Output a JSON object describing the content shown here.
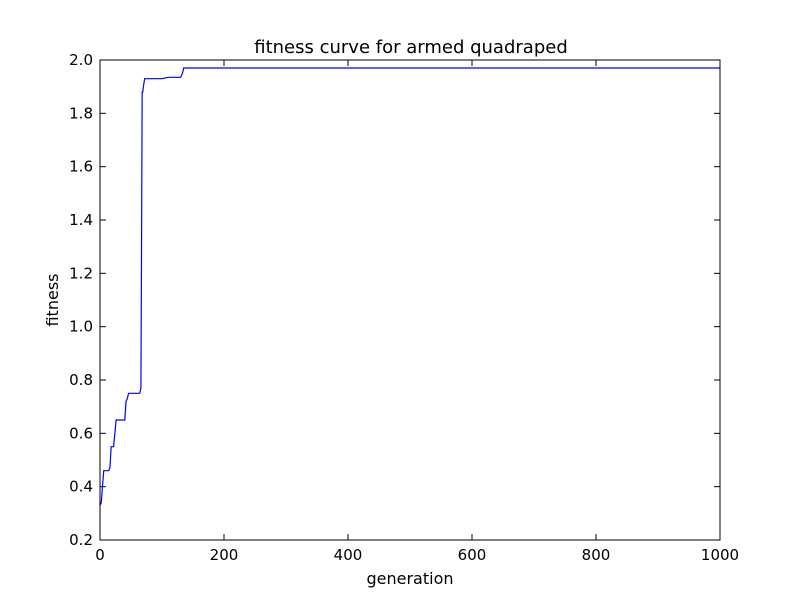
{
  "chart_data": {
    "type": "line",
    "title": "fitness curve for armed quadraped",
    "xlabel": "generation",
    "ylabel": "fitness",
    "xlim": [
      0,
      1000
    ],
    "ylim": [
      0.2,
      2.0
    ],
    "grid": false,
    "legend": "none",
    "x_ticks": [
      "0",
      "200",
      "400",
      "600",
      "800",
      "1000"
    ],
    "y_ticks": [
      "0.2",
      "0.4",
      "0.6",
      "0.8",
      "1.0",
      "1.2",
      "1.4",
      "1.6",
      "1.8",
      "2.0"
    ],
    "series": [
      {
        "color": "#0000ff",
        "x": [
          0,
          2,
          3,
          4,
          6,
          10,
          14,
          16,
          18,
          20,
          22,
          24,
          26,
          30,
          36,
          40,
          42,
          44,
          46,
          50,
          56,
          60,
          64,
          66,
          67,
          68,
          69,
          70,
          72,
          74,
          76,
          80,
          90,
          100,
          110,
          120,
          130,
          133,
          135,
          140,
          200,
          400,
          600,
          800,
          1000
        ],
        "y": [
          0.33,
          0.34,
          0.37,
          0.4,
          0.46,
          0.46,
          0.46,
          0.47,
          0.55,
          0.55,
          0.55,
          0.6,
          0.65,
          0.65,
          0.65,
          0.65,
          0.72,
          0.73,
          0.75,
          0.75,
          0.75,
          0.75,
          0.75,
          0.77,
          1.3,
          1.88,
          1.88,
          1.9,
          1.93,
          1.93,
          1.93,
          1.93,
          1.93,
          1.93,
          1.935,
          1.935,
          1.935,
          1.95,
          1.97,
          1.97,
          1.97,
          1.97,
          1.97,
          1.97,
          1.97
        ]
      }
    ]
  }
}
